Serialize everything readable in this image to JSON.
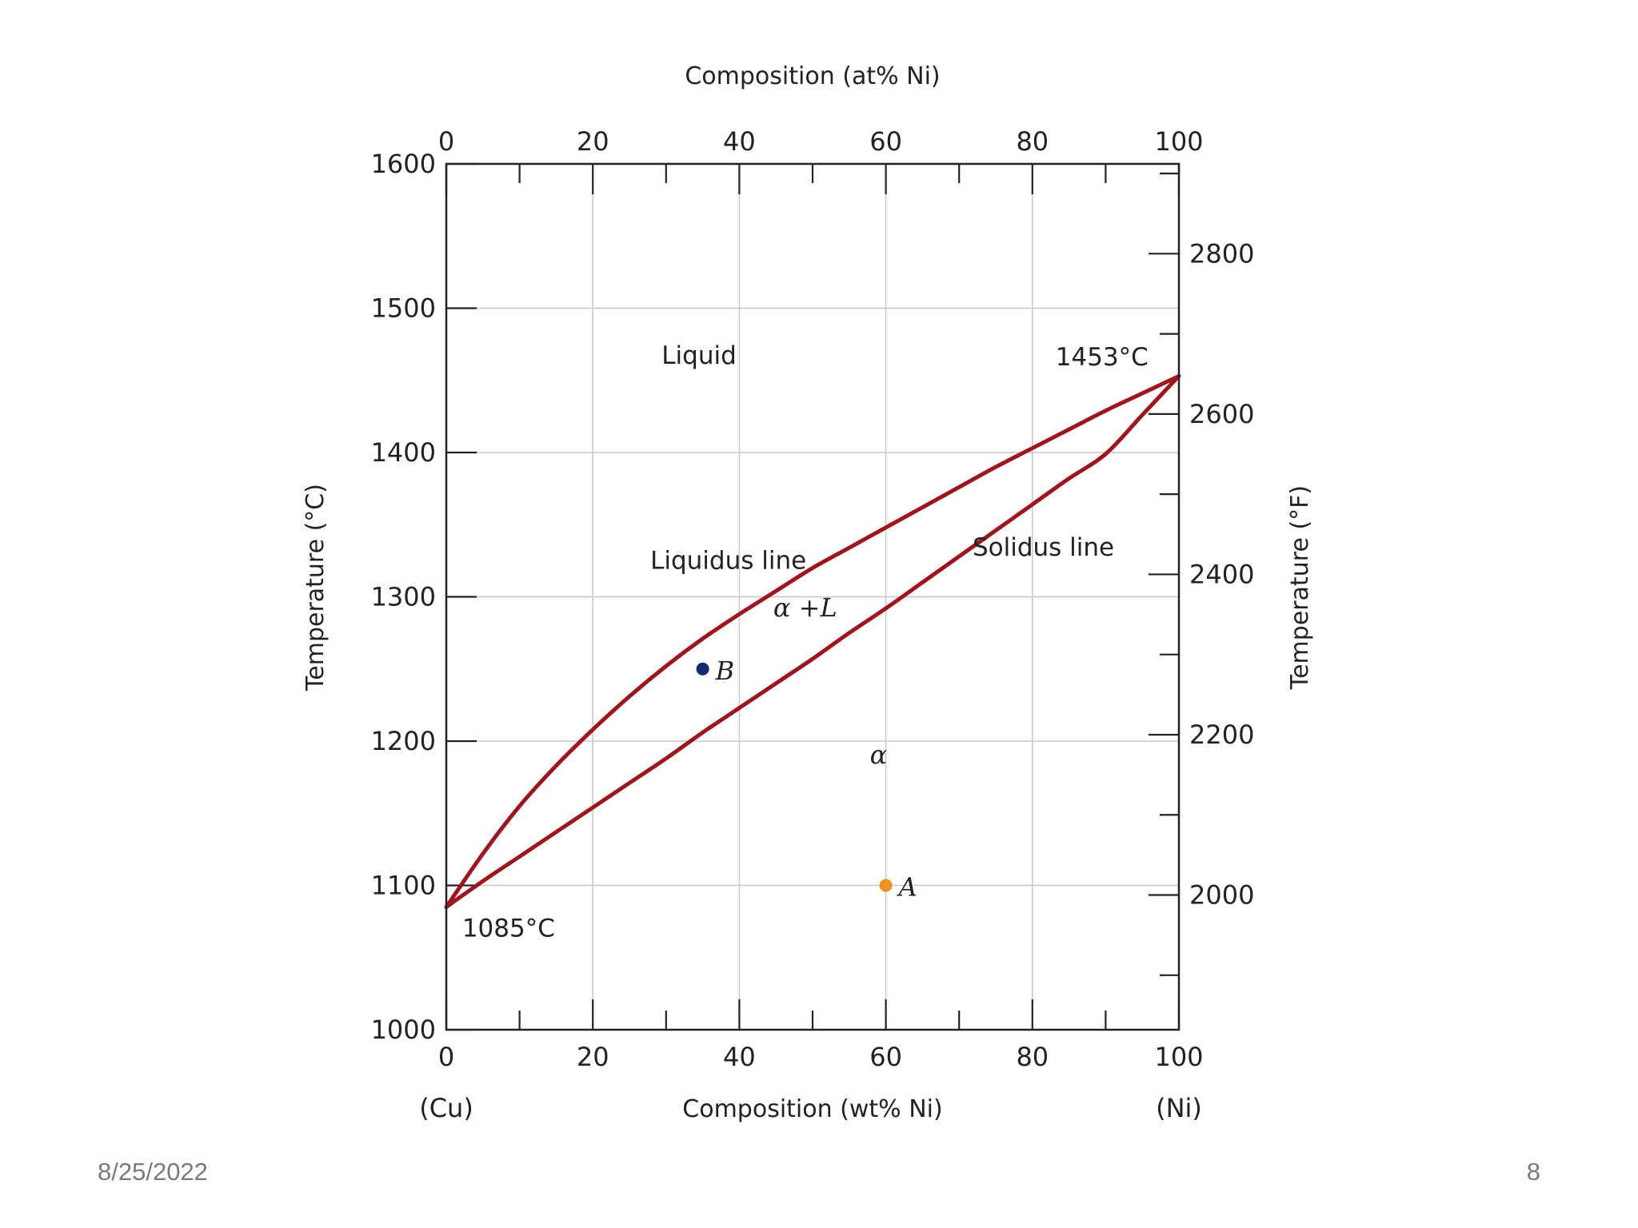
{
  "slide": {
    "date": "8/25/2022",
    "page_number": "8"
  },
  "chart_data": {
    "type": "line",
    "title": "",
    "xlabel": "Composition (wt% Ni)",
    "x2label": "Composition (at% Ni)",
    "ylabel": "Temperature (°C)",
    "y2label": "Temperature (°F)",
    "xlim": [
      0,
      100
    ],
    "ylim": [
      1000,
      1600
    ],
    "x_ticks": [
      0,
      20,
      40,
      60,
      80,
      100
    ],
    "x_tick_labels": [
      "0",
      "20",
      "40",
      "60",
      "80",
      "100"
    ],
    "x2_ticks": [
      0,
      20,
      40,
      60,
      80,
      100
    ],
    "x2_tick_labels": [
      "0",
      "20",
      "40",
      "60",
      "80",
      "100"
    ],
    "y_ticks": [
      1000,
      1100,
      1200,
      1300,
      1400,
      1500,
      1600
    ],
    "y_tick_labels": [
      "1000",
      "1100",
      "1200",
      "1300",
      "1400",
      "1500",
      "1600"
    ],
    "y2_ticks_F": [
      2000,
      2200,
      2400,
      2600,
      2800
    ],
    "y2_tick_labels": [
      "2000",
      "2200",
      "2400",
      "2600",
      "2800"
    ],
    "x_end_labels": {
      "left": "(Cu)",
      "right": "(Ni)"
    },
    "grid": true,
    "series": [
      {
        "name": "Liquidus line",
        "color": "#a0141e",
        "x": [
          0,
          5,
          10,
          15,
          20,
          25,
          30,
          35,
          40,
          45,
          50,
          55,
          60,
          65,
          70,
          75,
          80,
          85,
          90,
          95,
          100
        ],
        "y": [
          1085,
          1122,
          1155,
          1183,
          1208,
          1231,
          1252,
          1271,
          1288,
          1304,
          1320,
          1334,
          1348,
          1362,
          1376,
          1390,
          1403,
          1416,
          1429,
          1441,
          1453
        ]
      },
      {
        "name": "Solidus line",
        "color": "#a0141e",
        "x": [
          0,
          5,
          10,
          15,
          20,
          25,
          30,
          35,
          40,
          45,
          50,
          55,
          60,
          65,
          70,
          75,
          80,
          85,
          90,
          95,
          100
        ],
        "y": [
          1085,
          1103,
          1120,
          1137,
          1154,
          1171,
          1188,
          1206,
          1223,
          1240,
          1257,
          1275,
          1292,
          1310,
          1328,
          1346,
          1364,
          1382,
          1399,
          1426,
          1453
        ]
      }
    ],
    "points": [
      {
        "label": "A",
        "x": 60,
        "y": 1100,
        "color": "#f0901e"
      },
      {
        "label": "B",
        "x": 35,
        "y": 1250,
        "color": "#0f2a6e"
      }
    ],
    "annotations": [
      {
        "text": "Liquid",
        "x": 34.5,
        "y": 1467
      },
      {
        "text": "1453°C",
        "x": 89.5,
        "y": 1466
      },
      {
        "text": "Liquidus line",
        "x": 38.5,
        "y": 1325
      },
      {
        "text": "Solidus line",
        "x": 81.5,
        "y": 1334
      },
      {
        "text": "α +L",
        "x": 49,
        "y": 1292
      },
      {
        "text": "α",
        "x": 59,
        "y": 1190
      },
      {
        "text": "1085°C",
        "x": 8.5,
        "y": 1070
      }
    ]
  }
}
